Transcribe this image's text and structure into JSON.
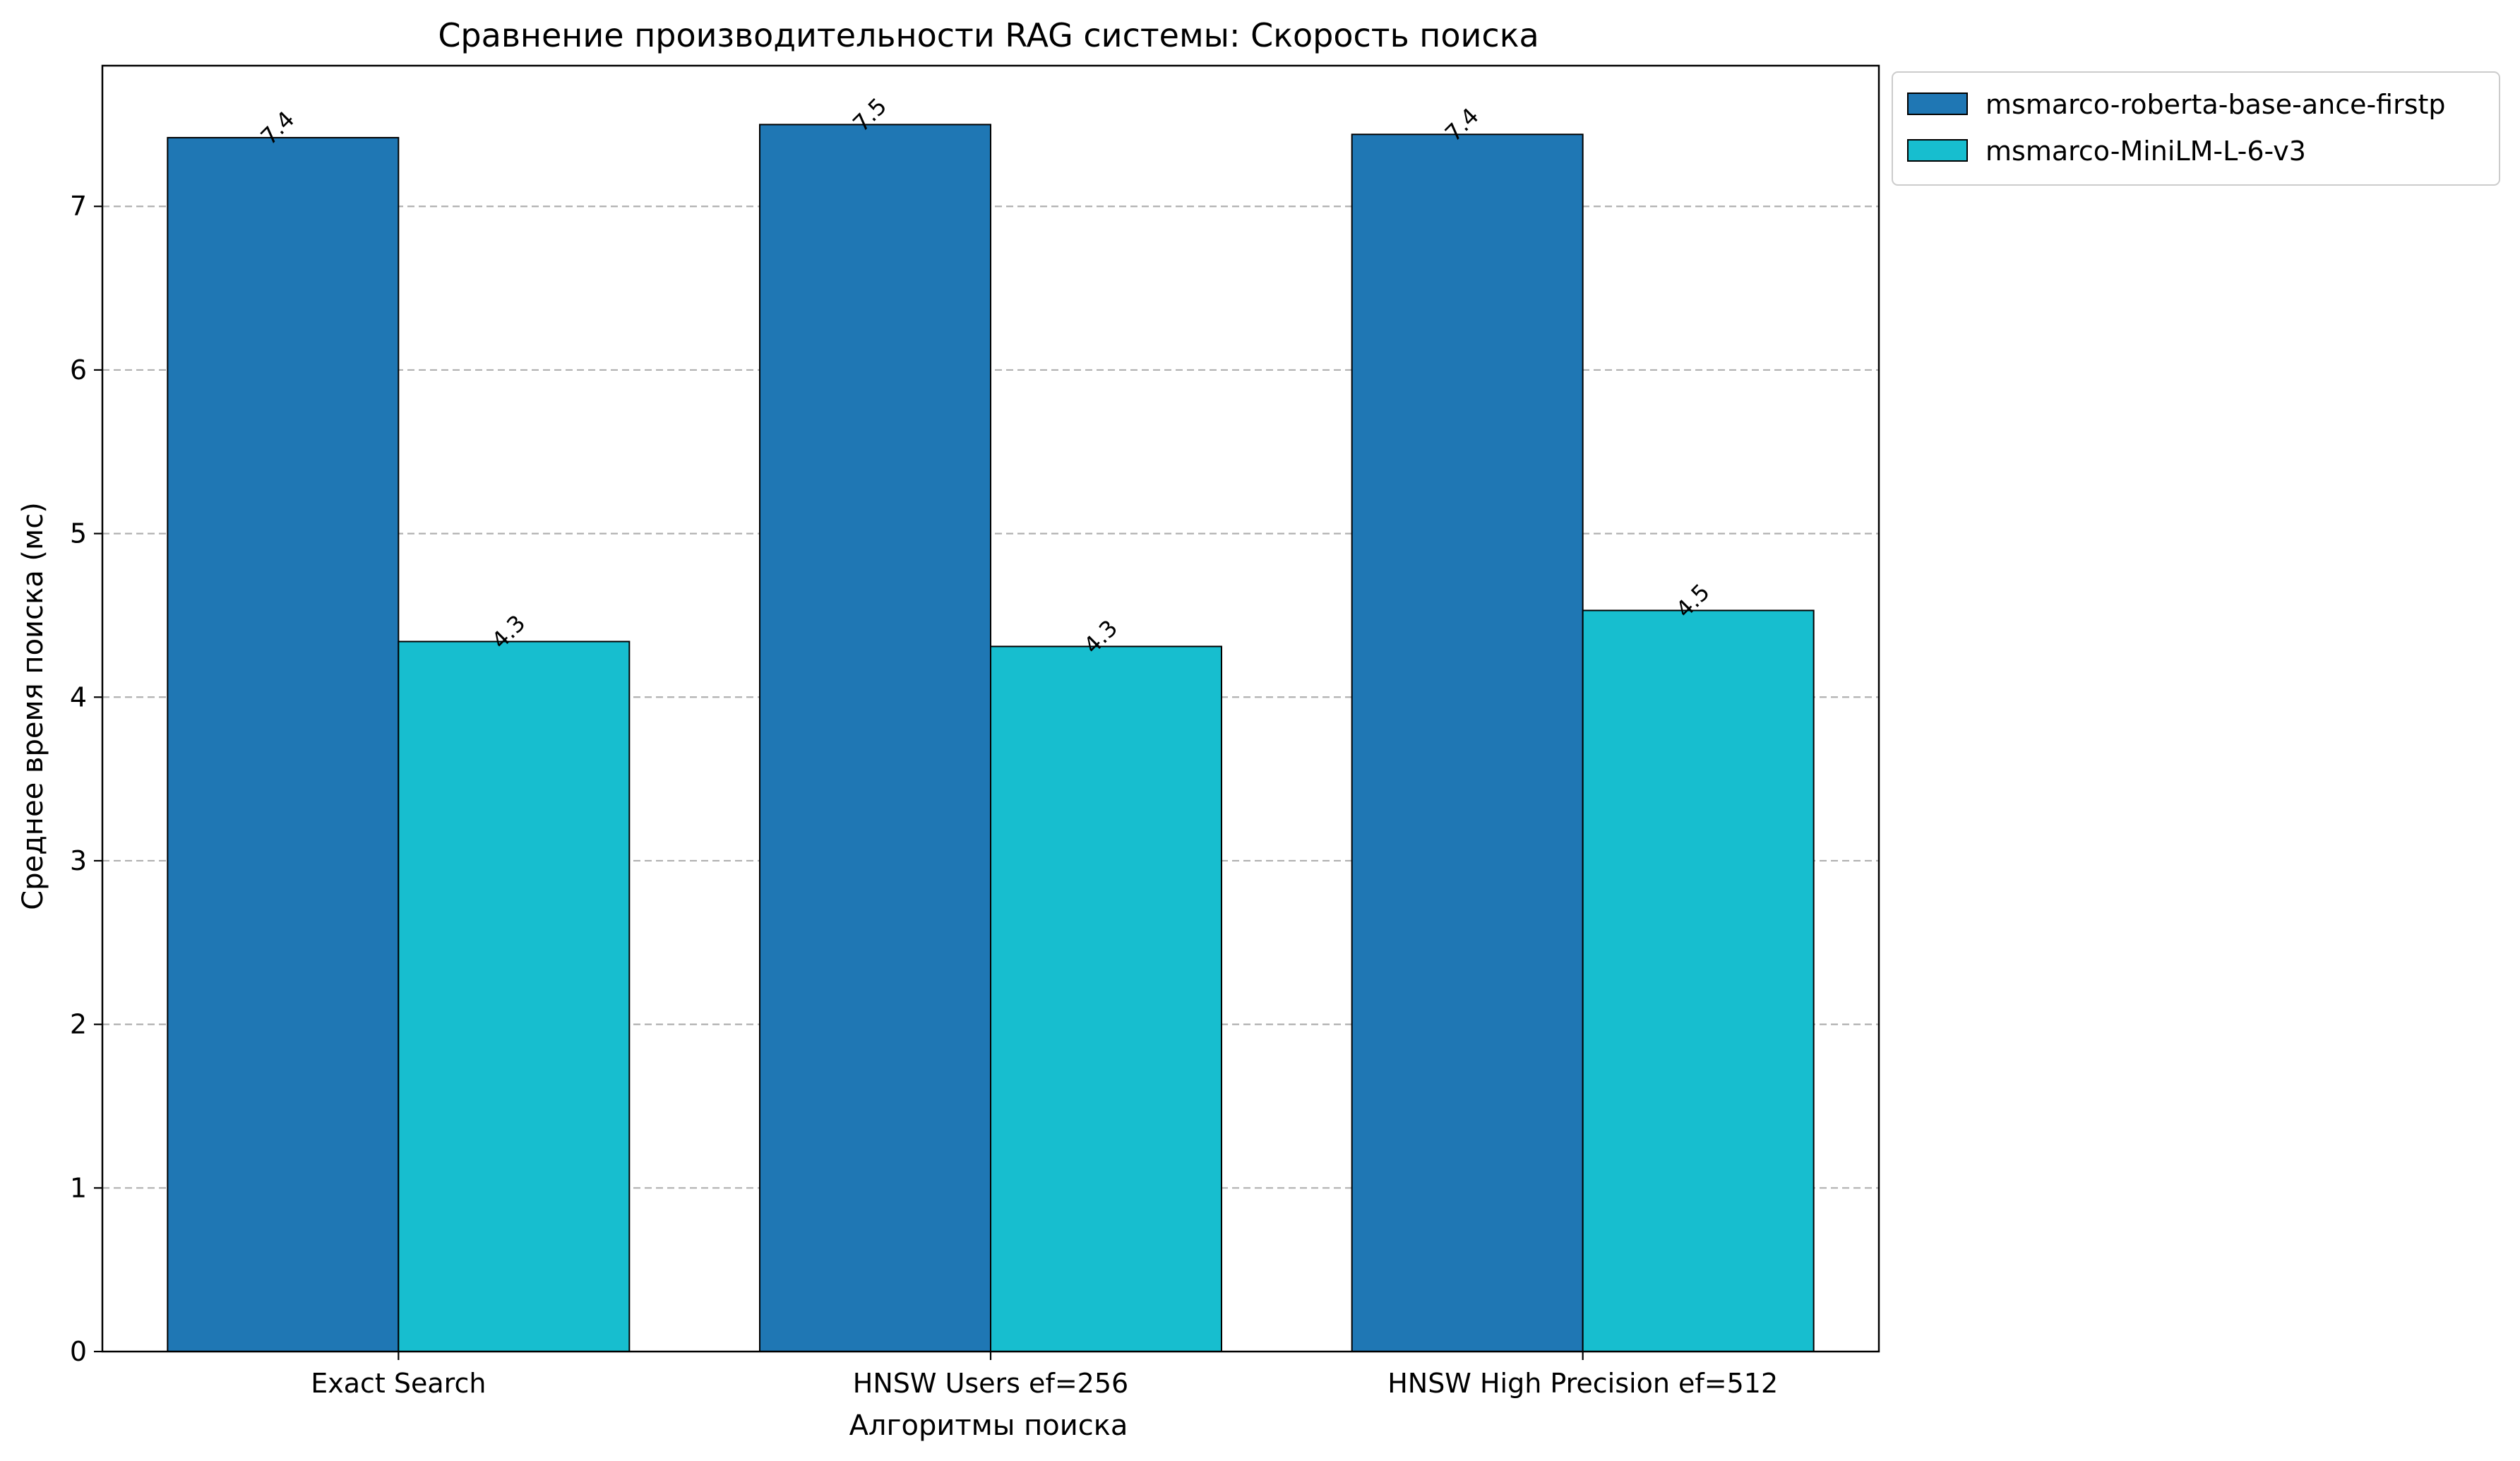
{
  "chart_data": {
    "type": "bar",
    "title": "Сравнение производительности RAG системы: Скорость поиска",
    "xlabel": "Алгоритмы поиска",
    "ylabel": "Среднее время поиска (мс)",
    "categories": [
      "Exact Search",
      "HNSW Users ef=256",
      "HNSW High Precision ef=512"
    ],
    "series": [
      {
        "name": "msmarco-roberta-base-ance-firstp",
        "color": "#1f77b4",
        "values": [
          7.42,
          7.5,
          7.44
        ],
        "labels": [
          "7.4",
          "7.5",
          "7.4"
        ]
      },
      {
        "name": "msmarco-MiniLM-L-6-v3",
        "color": "#17becf",
        "values": [
          4.34,
          4.31,
          4.53
        ],
        "labels": [
          "4.3",
          "4.3",
          "4.5"
        ]
      }
    ],
    "ylim": [
      0,
      7.86
    ],
    "yticks": [
      0,
      1,
      2,
      3,
      4,
      5,
      6,
      7
    ],
    "grid": "y-dashed",
    "legend_position": "outside-top-right"
  }
}
